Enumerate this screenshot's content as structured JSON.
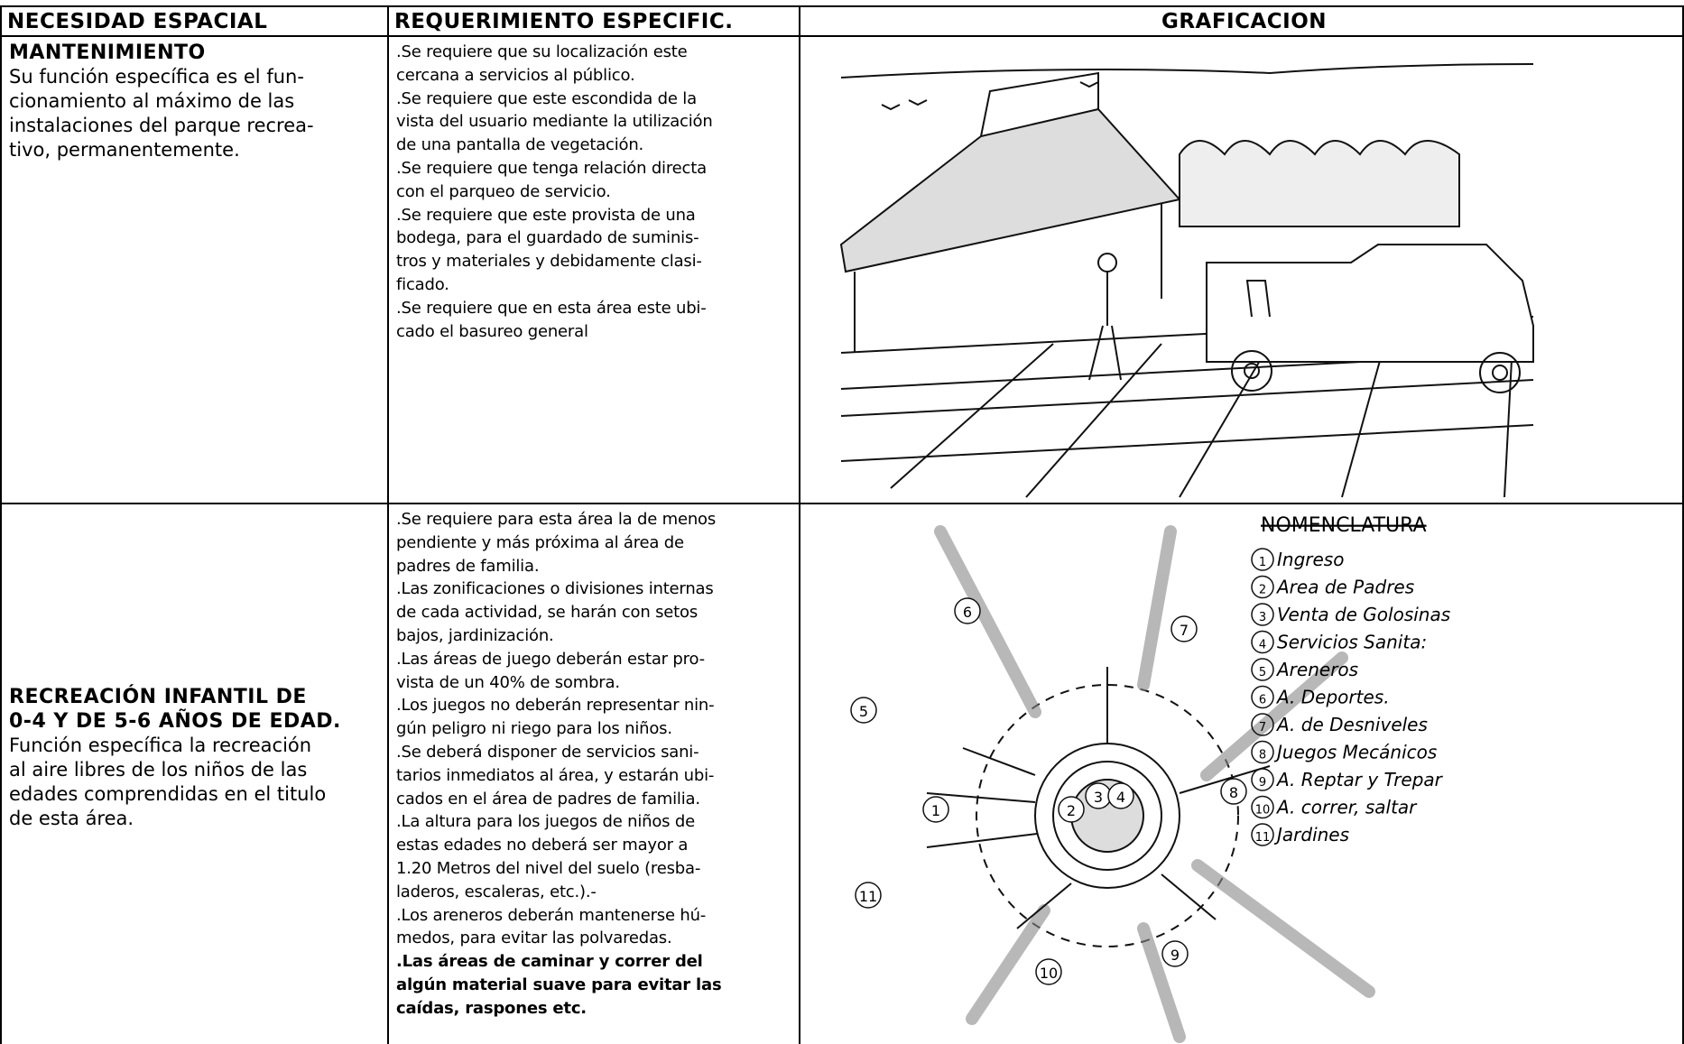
{
  "header": [
    "NECESIDAD ESPACIAL",
    "REQUERIMIENTO ESPECIFIC.",
    "GRAFICACION"
  ],
  "rows": [
    {
      "need": {
        "title_lines": [
          "MANTENIMIENTO"
        ],
        "lines": [
          "Su función específica es el fun-",
          "cionamiento al máximo de las",
          "instalaciones del parque recrea-",
          "tivo, permanentemente."
        ]
      },
      "requirements": {
        "lines": [
          ".Se requiere que su localización este",
          "cercana a servicios al público.",
          ".Se requiere que este escondida de la",
          "vista del usuario mediante la utilización",
          "de una pantalla de vegetación.",
          ".Se requiere que tenga relación directa",
          "con el parqueo de servicio.",
          ".Se requiere que este provista de una",
          "bodega, para el guardado de suminis-",
          "tros y materiales y debidamente clasi-",
          "ficado.",
          ".Se requiere que en esta área este ubi-",
          "cado el basureo general"
        ],
        "bold_lines": []
      }
    },
    {
      "need": {
        "title_lines": [
          "RECREACIÓN INFANTIL DE",
          "0-4 Y DE 5-6 AÑOS DE EDAD."
        ],
        "lines": [
          "Función específica la recreación",
          "al aire libres de los niños de las",
          "edades comprendidas en el titulo",
          "de esta área."
        ]
      },
      "requirements": {
        "lines": [
          ".Se requiere para esta área la de menos",
          "pendiente y más próxima al área de",
          "padres de familia.",
          ".Las zonificaciones o divisiones internas",
          "de cada actividad,  se harán con setos",
          "bajos, jardinización.",
          ".Las áreas de juego deberán estar pro-",
          "vista de un 40% de sombra.",
          ".Los juegos no deberán representar nin-",
          "gún peligro ni riego para los niños.",
          ".Se deberá disponer de servicios sani-",
          "tarios inmediatos al área, y estarán ubi-",
          "cados en el área de padres de familia.",
          ".La  altura  para los juegos de niños  de",
          "estas  edades  no  deberá  ser  mayor a",
          "1.20 Metros del nivel del suelo (resba-",
          "laderos, escaleras, etc.).-",
          ".Los areneros deberán mantenerse hú-",
          "medos, para evitar las polvaredas."
        ],
        "bold_lines": [
          ".Las  áreas  de caminar y correr del",
          "algún material suave para evitar las",
          "caídas, raspones etc."
        ]
      },
      "nomenclature": {
        "title": "NOMENCLATURA",
        "items": [
          {
            "number": "1",
            "text": "Ingreso"
          },
          {
            "number": "2",
            "text": "Area de Padres"
          },
          {
            "number": "3",
            "text": "Venta de Golosinas"
          },
          {
            "number": "4",
            "text": "Servicios Sanita:"
          },
          {
            "number": "5",
            "text": "Areneros"
          },
          {
            "number": "6",
            "text": "A. Deportes."
          },
          {
            "number": "7",
            "text": "A. de Desniveles"
          },
          {
            "number": "8",
            "text": "Juegos Mecánicos"
          },
          {
            "number": "9",
            "text": "A. Reptar y Trepar"
          },
          {
            "number": "10",
            "text": "A. correr, saltar"
          },
          {
            "number": "11",
            "text": "Jardines"
          }
        ]
      }
    }
  ]
}
